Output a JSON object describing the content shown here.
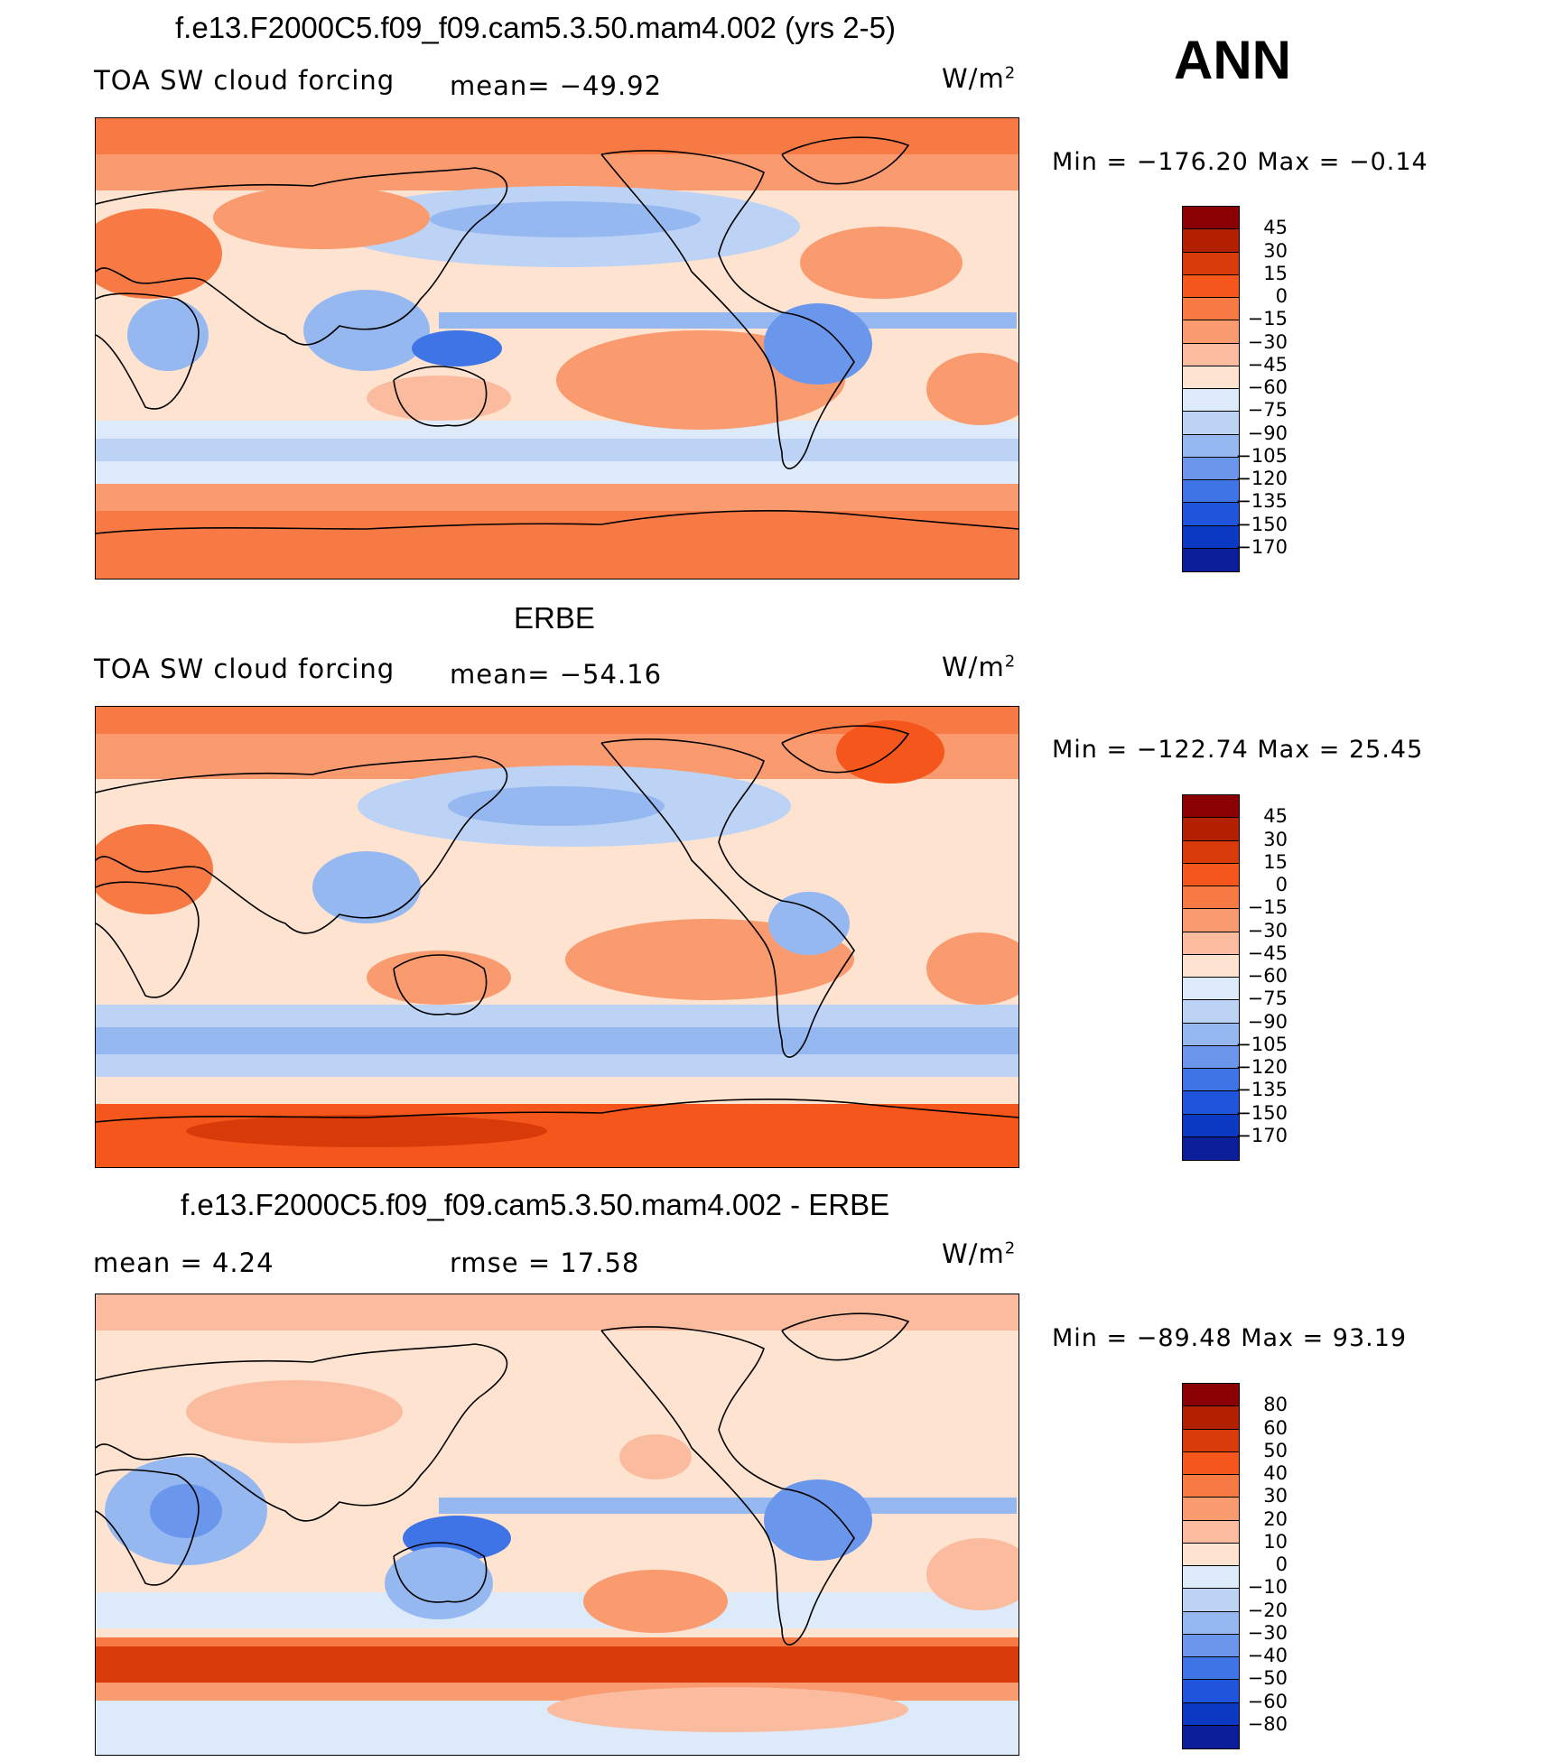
{
  "season": "ANN",
  "unit": "W/m",
  "unit_sup": "2",
  "panels": [
    {
      "title": "f.e13.F2000C5.f09_f09.cam5.3.50.mam4.002 (yrs 2-5)",
      "left_text": "TOA SW cloud forcing",
      "center_text": "mean= −49.92",
      "minmax": "Min = −176.20  Max =   −0.14",
      "colorbar": {
        "labels": [
          "45",
          "30",
          "15",
          "0",
          "−15",
          "−30",
          "−45",
          "−60",
          "−75",
          "−90",
          "−105",
          "−120",
          "−135",
          "−150",
          "−170"
        ],
        "colors": [
          "#8b0000",
          "#b22000",
          "#d83a0a",
          "#f4561c",
          "#f77a45",
          "#f99a6f",
          "#fbbb9e",
          "#fde3d0",
          "#ddeafa",
          "#bcd3f6",
          "#96b8f1",
          "#6a97ec",
          "#3f74e6",
          "#1f55dd",
          "#0b39c4",
          "#0a1e9a"
        ]
      }
    },
    {
      "title": "ERBE",
      "left_text": "TOA SW cloud forcing",
      "center_text": "mean= −54.16",
      "minmax": "Min = −122.74  Max =   25.45",
      "colorbar": {
        "labels": [
          "45",
          "30",
          "15",
          "0",
          "−15",
          "−30",
          "−45",
          "−60",
          "−75",
          "−90",
          "−105",
          "−120",
          "−135",
          "−150",
          "−170"
        ],
        "colors": [
          "#8b0000",
          "#b22000",
          "#d83a0a",
          "#f4561c",
          "#f77a45",
          "#f99a6f",
          "#fbbb9e",
          "#fde3d0",
          "#ddeafa",
          "#bcd3f6",
          "#96b8f1",
          "#6a97ec",
          "#3f74e6",
          "#1f55dd",
          "#0b39c4",
          "#0a1e9a"
        ]
      }
    },
    {
      "title": "f.e13.F2000C5.f09_f09.cam5.3.50.mam4.002 - ERBE",
      "left_text": "mean =    4.24",
      "center_text": "rmse =   17.58",
      "minmax": "Min = −89.48  Max =  93.19",
      "colorbar": {
        "labels": [
          "80",
          "60",
          "50",
          "40",
          "30",
          "20",
          "10",
          "0",
          "−10",
          "−20",
          "−30",
          "−40",
          "−50",
          "−60",
          "−80"
        ],
        "colors": [
          "#8b0000",
          "#b22000",
          "#d83a0a",
          "#f4561c",
          "#f77a45",
          "#f99a6f",
          "#fbbb9e",
          "#fde3d0",
          "#ddeafa",
          "#bcd3f6",
          "#96b8f1",
          "#6a97ec",
          "#3f74e6",
          "#1f55dd",
          "#0b39c4",
          "#0a1e9a"
        ]
      }
    }
  ]
}
